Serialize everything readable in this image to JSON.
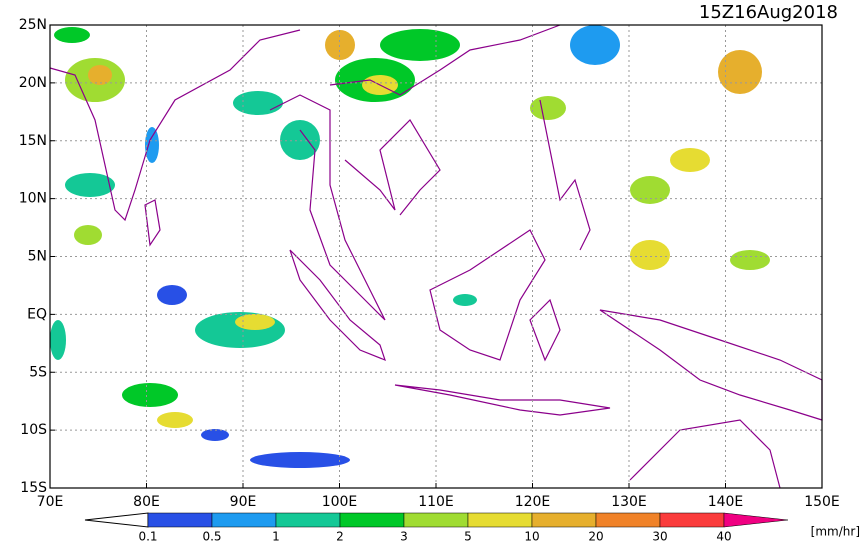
{
  "header": {
    "title": "15Z16Aug2018"
  },
  "map": {
    "y_labels": [
      "25N",
      "20N",
      "15N",
      "10N",
      "5N",
      "EQ",
      "5S",
      "10S",
      "15S"
    ],
    "x_labels": [
      "70E",
      "80E",
      "90E",
      "100E",
      "110E",
      "120E",
      "130E",
      "140E",
      "150E"
    ]
  },
  "colorbar": {
    "labels": [
      "0.1",
      "0.5",
      "1",
      "2",
      "3",
      "5",
      "10",
      "20",
      "30",
      "40"
    ],
    "colors": [
      "#2850e6",
      "#1e9bf0",
      "#14c896",
      "#00c828",
      "#a0dc32",
      "#e6dc32",
      "#e6af2d",
      "#f08228",
      "#fa3c3c",
      "#f00082"
    ],
    "unit": "[mm/hr]"
  }
}
